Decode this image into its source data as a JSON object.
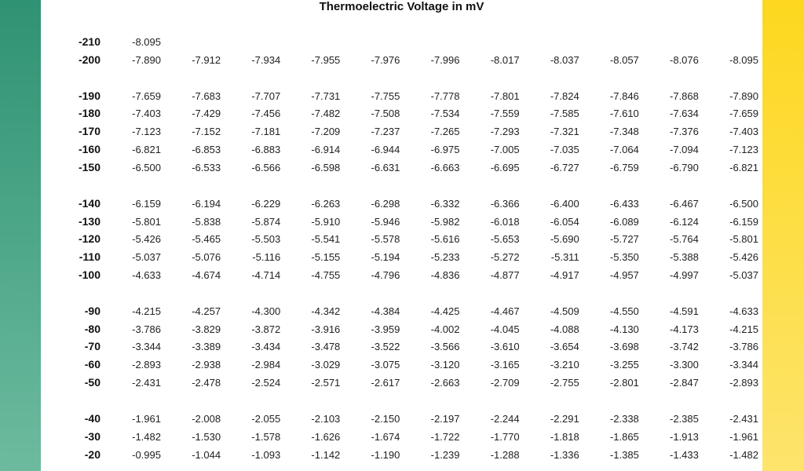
{
  "title": "Thermoelectric Voltage in mV",
  "table": {
    "groups": [
      [
        {
          "label": "-210",
          "cells": [
            "-8.095"
          ]
        },
        {
          "label": "-200",
          "cells": [
            "-7.890",
            "-7.912",
            "-7.934",
            "-7.955",
            "-7.976",
            "-7.996",
            "-8.017",
            "-8.037",
            "-8.057",
            "-8.076",
            "-8.095"
          ]
        }
      ],
      [
        {
          "label": "-190",
          "cells": [
            "-7.659",
            "-7.683",
            "-7.707",
            "-7.731",
            "-7.755",
            "-7.778",
            "-7.801",
            "-7.824",
            "-7.846",
            "-7.868",
            "-7.890"
          ]
        },
        {
          "label": "-180",
          "cells": [
            "-7.403",
            "-7.429",
            "-7.456",
            "-7.482",
            "-7.508",
            "-7.534",
            "-7.559",
            "-7.585",
            "-7.610",
            "-7.634",
            "-7.659"
          ]
        },
        {
          "label": "-170",
          "cells": [
            "-7.123",
            "-7.152",
            "-7.181",
            "-7.209",
            "-7.237",
            "-7.265",
            "-7.293",
            "-7.321",
            "-7.348",
            "-7.376",
            "-7.403"
          ]
        },
        {
          "label": "-160",
          "cells": [
            "-6.821",
            "-6.853",
            "-6.883",
            "-6.914",
            "-6.944",
            "-6.975",
            "-7.005",
            "-7.035",
            "-7.064",
            "-7.094",
            "-7.123"
          ]
        },
        {
          "label": "-150",
          "cells": [
            "-6.500",
            "-6.533",
            "-6.566",
            "-6.598",
            "-6.631",
            "-6.663",
            "-6.695",
            "-6.727",
            "-6.759",
            "-6.790",
            "-6.821"
          ]
        }
      ],
      [
        {
          "label": "-140",
          "cells": [
            "-6.159",
            "-6.194",
            "-6.229",
            "-6.263",
            "-6.298",
            "-6.332",
            "-6.366",
            "-6.400",
            "-6.433",
            "-6.467",
            "-6.500"
          ]
        },
        {
          "label": "-130",
          "cells": [
            "-5.801",
            "-5.838",
            "-5.874",
            "-5.910",
            "-5.946",
            "-5.982",
            "-6.018",
            "-6.054",
            "-6.089",
            "-6.124",
            "-6.159"
          ]
        },
        {
          "label": "-120",
          "cells": [
            "-5.426",
            "-5.465",
            "-5.503",
            "-5.541",
            "-5.578",
            "-5.616",
            "-5.653",
            "-5.690",
            "-5.727",
            "-5.764",
            "-5.801"
          ]
        },
        {
          "label": "-110",
          "cells": [
            "-5.037",
            "-5.076",
            "-5.116",
            "-5.155",
            "-5.194",
            "-5.233",
            "-5.272",
            "-5.311",
            "-5.350",
            "-5.388",
            "-5.426"
          ]
        },
        {
          "label": "-100",
          "cells": [
            "-4.633",
            "-4.674",
            "-4.714",
            "-4.755",
            "-4.796",
            "-4.836",
            "-4.877",
            "-4.917",
            "-4.957",
            "-4.997",
            "-5.037"
          ]
        }
      ],
      [
        {
          "label": "-90",
          "cells": [
            "-4.215",
            "-4.257",
            "-4.300",
            "-4.342",
            "-4.384",
            "-4.425",
            "-4.467",
            "-4.509",
            "-4.550",
            "-4.591",
            "-4.633"
          ]
        },
        {
          "label": "-80",
          "cells": [
            "-3.786",
            "-3.829",
            "-3.872",
            "-3.916",
            "-3.959",
            "-4.002",
            "-4.045",
            "-4.088",
            "-4.130",
            "-4.173",
            "-4.215"
          ]
        },
        {
          "label": "-70",
          "cells": [
            "-3.344",
            "-3.389",
            "-3.434",
            "-3.478",
            "-3.522",
            "-3.566",
            "-3.610",
            "-3.654",
            "-3.698",
            "-3.742",
            "-3.786"
          ]
        },
        {
          "label": "-60",
          "cells": [
            "-2.893",
            "-2.938",
            "-2.984",
            "-3.029",
            "-3.075",
            "-3.120",
            "-3.165",
            "-3.210",
            "-3.255",
            "-3.300",
            "-3.344"
          ]
        },
        {
          "label": "-50",
          "cells": [
            "-2.431",
            "-2.478",
            "-2.524",
            "-2.571",
            "-2.617",
            "-2.663",
            "-2.709",
            "-2.755",
            "-2.801",
            "-2.847",
            "-2.893"
          ]
        }
      ],
      [
        {
          "label": "-40",
          "cells": [
            "-1.961",
            "-2.008",
            "-2.055",
            "-2.103",
            "-2.150",
            "-2.197",
            "-2.244",
            "-2.291",
            "-2.338",
            "-2.385",
            "-2.431"
          ]
        },
        {
          "label": "-30",
          "cells": [
            "-1.482",
            "-1.530",
            "-1.578",
            "-1.626",
            "-1.674",
            "-1.722",
            "-1.770",
            "-1.818",
            "-1.865",
            "-1.913",
            "-1.961"
          ]
        },
        {
          "label": "-20",
          "cells": [
            "-0.995",
            "-1.044",
            "-1.093",
            "-1.142",
            "-1.190",
            "-1.239",
            "-1.288",
            "-1.336",
            "-1.385",
            "-1.433",
            "-1.482"
          ]
        }
      ]
    ]
  }
}
